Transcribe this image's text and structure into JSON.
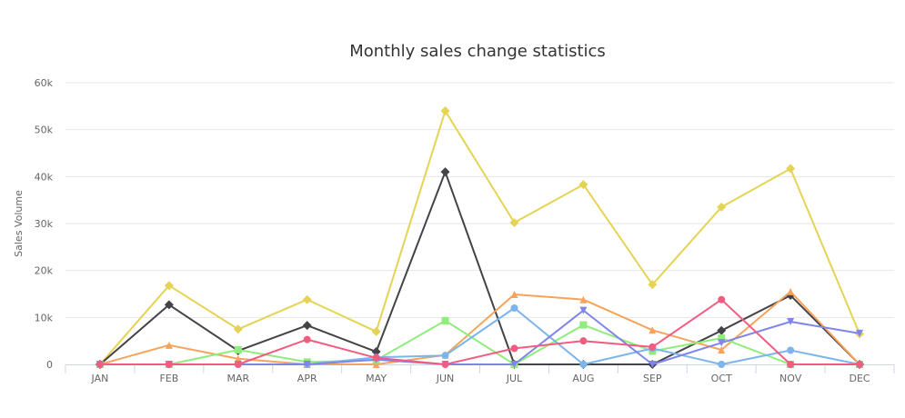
{
  "chart_data": {
    "type": "line",
    "title": "Monthly sales change statistics",
    "xlabel": "",
    "ylabel": "Sales Volume",
    "categories": [
      "JAN",
      "FEB",
      "MAR",
      "APR",
      "MAY",
      "JUN",
      "JUL",
      "AUG",
      "SEP",
      "OCT",
      "NOV",
      "DEC"
    ],
    "ylim": [
      0,
      60000
    ],
    "yticks": [
      0,
      10000,
      20000,
      30000,
      40000,
      50000,
      60000
    ],
    "ytick_labels": [
      "0",
      "10k",
      "20k",
      "30k",
      "40k",
      "50k",
      "60k"
    ],
    "grid": true,
    "legend": "none",
    "series": [
      {
        "color": "#e4d354",
        "marker": "diamond",
        "values": [
          0,
          16800,
          7500,
          13800,
          7000,
          54000,
          30200,
          38300,
          17000,
          33500,
          41700,
          6500
        ]
      },
      {
        "color": "#434348",
        "marker": "diamond",
        "values": [
          0,
          12700,
          2900,
          8300,
          2700,
          41000,
          0,
          0,
          0,
          7200,
          14700,
          0
        ]
      },
      {
        "color": "#f7a35c",
        "marker": "triangle",
        "values": [
          0,
          4100,
          1200,
          0,
          0,
          2000,
          14900,
          13800,
          7300,
          3100,
          15500,
          0
        ]
      },
      {
        "color": "#90ed7d",
        "marker": "square",
        "values": [
          0,
          0,
          3100,
          500,
          900,
          9300,
          0,
          8400,
          2800,
          5600,
          0,
          0
        ]
      },
      {
        "color": "#7cb5ec",
        "marker": "circle",
        "values": [
          0,
          0,
          0,
          0,
          1500,
          1900,
          12000,
          0,
          3400,
          0,
          3000,
          0
        ]
      },
      {
        "color": "#8085e9",
        "marker": "triangle-down",
        "values": [
          0,
          0,
          0,
          0,
          1000,
          0,
          0,
          11500,
          0,
          4600,
          9100,
          6600
        ]
      },
      {
        "color": "#f15c80",
        "marker": "circle",
        "values": [
          0,
          0,
          0,
          5300,
          1400,
          0,
          3400,
          5000,
          3700,
          13800,
          0,
          0
        ]
      }
    ]
  }
}
